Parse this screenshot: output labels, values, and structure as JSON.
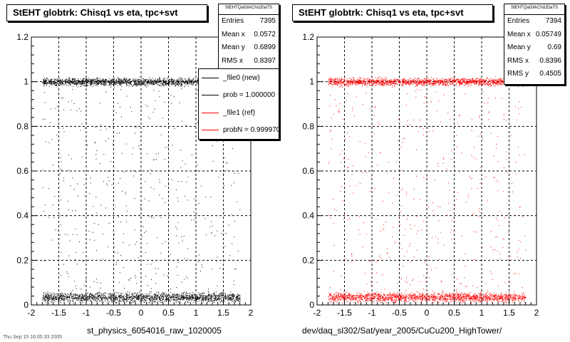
{
  "footer_text": "Thu Sep 15 16:05:33 2005",
  "chart_data": [
    {
      "type": "scatter",
      "title": "StEHT globtrk: Chisq1 vs eta, tpc+svt",
      "xlabel": "st_physics_6054016_raw_1020005",
      "ylabel": "",
      "xlim": [
        -2,
        2
      ],
      "ylim": [
        0,
        1.2
      ],
      "x_ticks": [
        "-2",
        "-1.5",
        "-1",
        "-0.5",
        "0",
        "0.5",
        "1",
        "1.5",
        "2"
      ],
      "y_ticks": [
        "0",
        "0.2",
        "0.4",
        "0.6",
        "0.8",
        "1",
        "1.2"
      ],
      "grid": true,
      "marker_color": "#000000",
      "stats": {
        "header": "StEHTQaGtrkChi1EtaTS",
        "rows": [
          {
            "label": "Entries",
            "value": "7395"
          },
          {
            "label": "Mean x",
            "value": "0.0572"
          },
          {
            "label": "Mean y",
            "value": "0.6899"
          },
          {
            "label": "RMS x",
            "value": "0.8397"
          }
        ]
      },
      "legend": {
        "placement": "top-right",
        "items": [
          {
            "label": "_file0 (new)",
            "color": "#000000"
          },
          {
            "label": "prob = 1.000000",
            "color": "#000000"
          },
          {
            "label": "_file1 (ref)",
            "color": "#ff0000"
          },
          {
            "label": "probN = 0.999970",
            "color": "#ff0000"
          }
        ]
      },
      "bands": [
        {
          "y_center": 1.0,
          "y_halfwidth": 0.025,
          "x_range": [
            -1.8,
            1.8
          ],
          "weight": "dense"
        },
        {
          "y_center": 0.035,
          "y_halfwidth": 0.03,
          "x_range": [
            -1.8,
            1.8
          ],
          "weight": "dense"
        },
        {
          "y_range": [
            0.06,
            0.97
          ],
          "x_range": [
            -1.8,
            1.8
          ],
          "weight": "sparse"
        }
      ]
    },
    {
      "type": "scatter",
      "title": "StEHT globtrk: Chisq1 vs eta, tpc+svt",
      "xlabel": "dev/daq_sl302/Sat/year_2005/CuCu200_HighTower/",
      "ylabel": "",
      "xlim": [
        -2,
        2
      ],
      "ylim": [
        0,
        1.2
      ],
      "x_ticks": [
        "-2",
        "-1.5",
        "-1",
        "-0.5",
        "0",
        "0.5",
        "1",
        "1.5",
        "2"
      ],
      "y_ticks": [
        "0",
        "0.2",
        "0.4",
        "0.6",
        "0.8",
        "1",
        "1.2"
      ],
      "grid": true,
      "marker_color": "#ff0000",
      "stats": {
        "header": "StEHTQaGtrkChi1EtaTS",
        "rows": [
          {
            "label": "Entries",
            "value": "7394"
          },
          {
            "label": "Mean x",
            "value": "0.05749"
          },
          {
            "label": "Mean y",
            "value": "0.69"
          },
          {
            "label": "RMS x",
            "value": "0.8396"
          },
          {
            "label": "RMS y",
            "value": "0.4505"
          }
        ]
      },
      "bands": [
        {
          "y_center": 1.0,
          "y_halfwidth": 0.025,
          "x_range": [
            -1.8,
            1.8
          ],
          "weight": "dense"
        },
        {
          "y_center": 0.035,
          "y_halfwidth": 0.03,
          "x_range": [
            -1.8,
            1.8
          ],
          "weight": "dense"
        },
        {
          "y_range": [
            0.06,
            0.97
          ],
          "x_range": [
            -1.8,
            1.8
          ],
          "weight": "sparse"
        }
      ]
    }
  ]
}
